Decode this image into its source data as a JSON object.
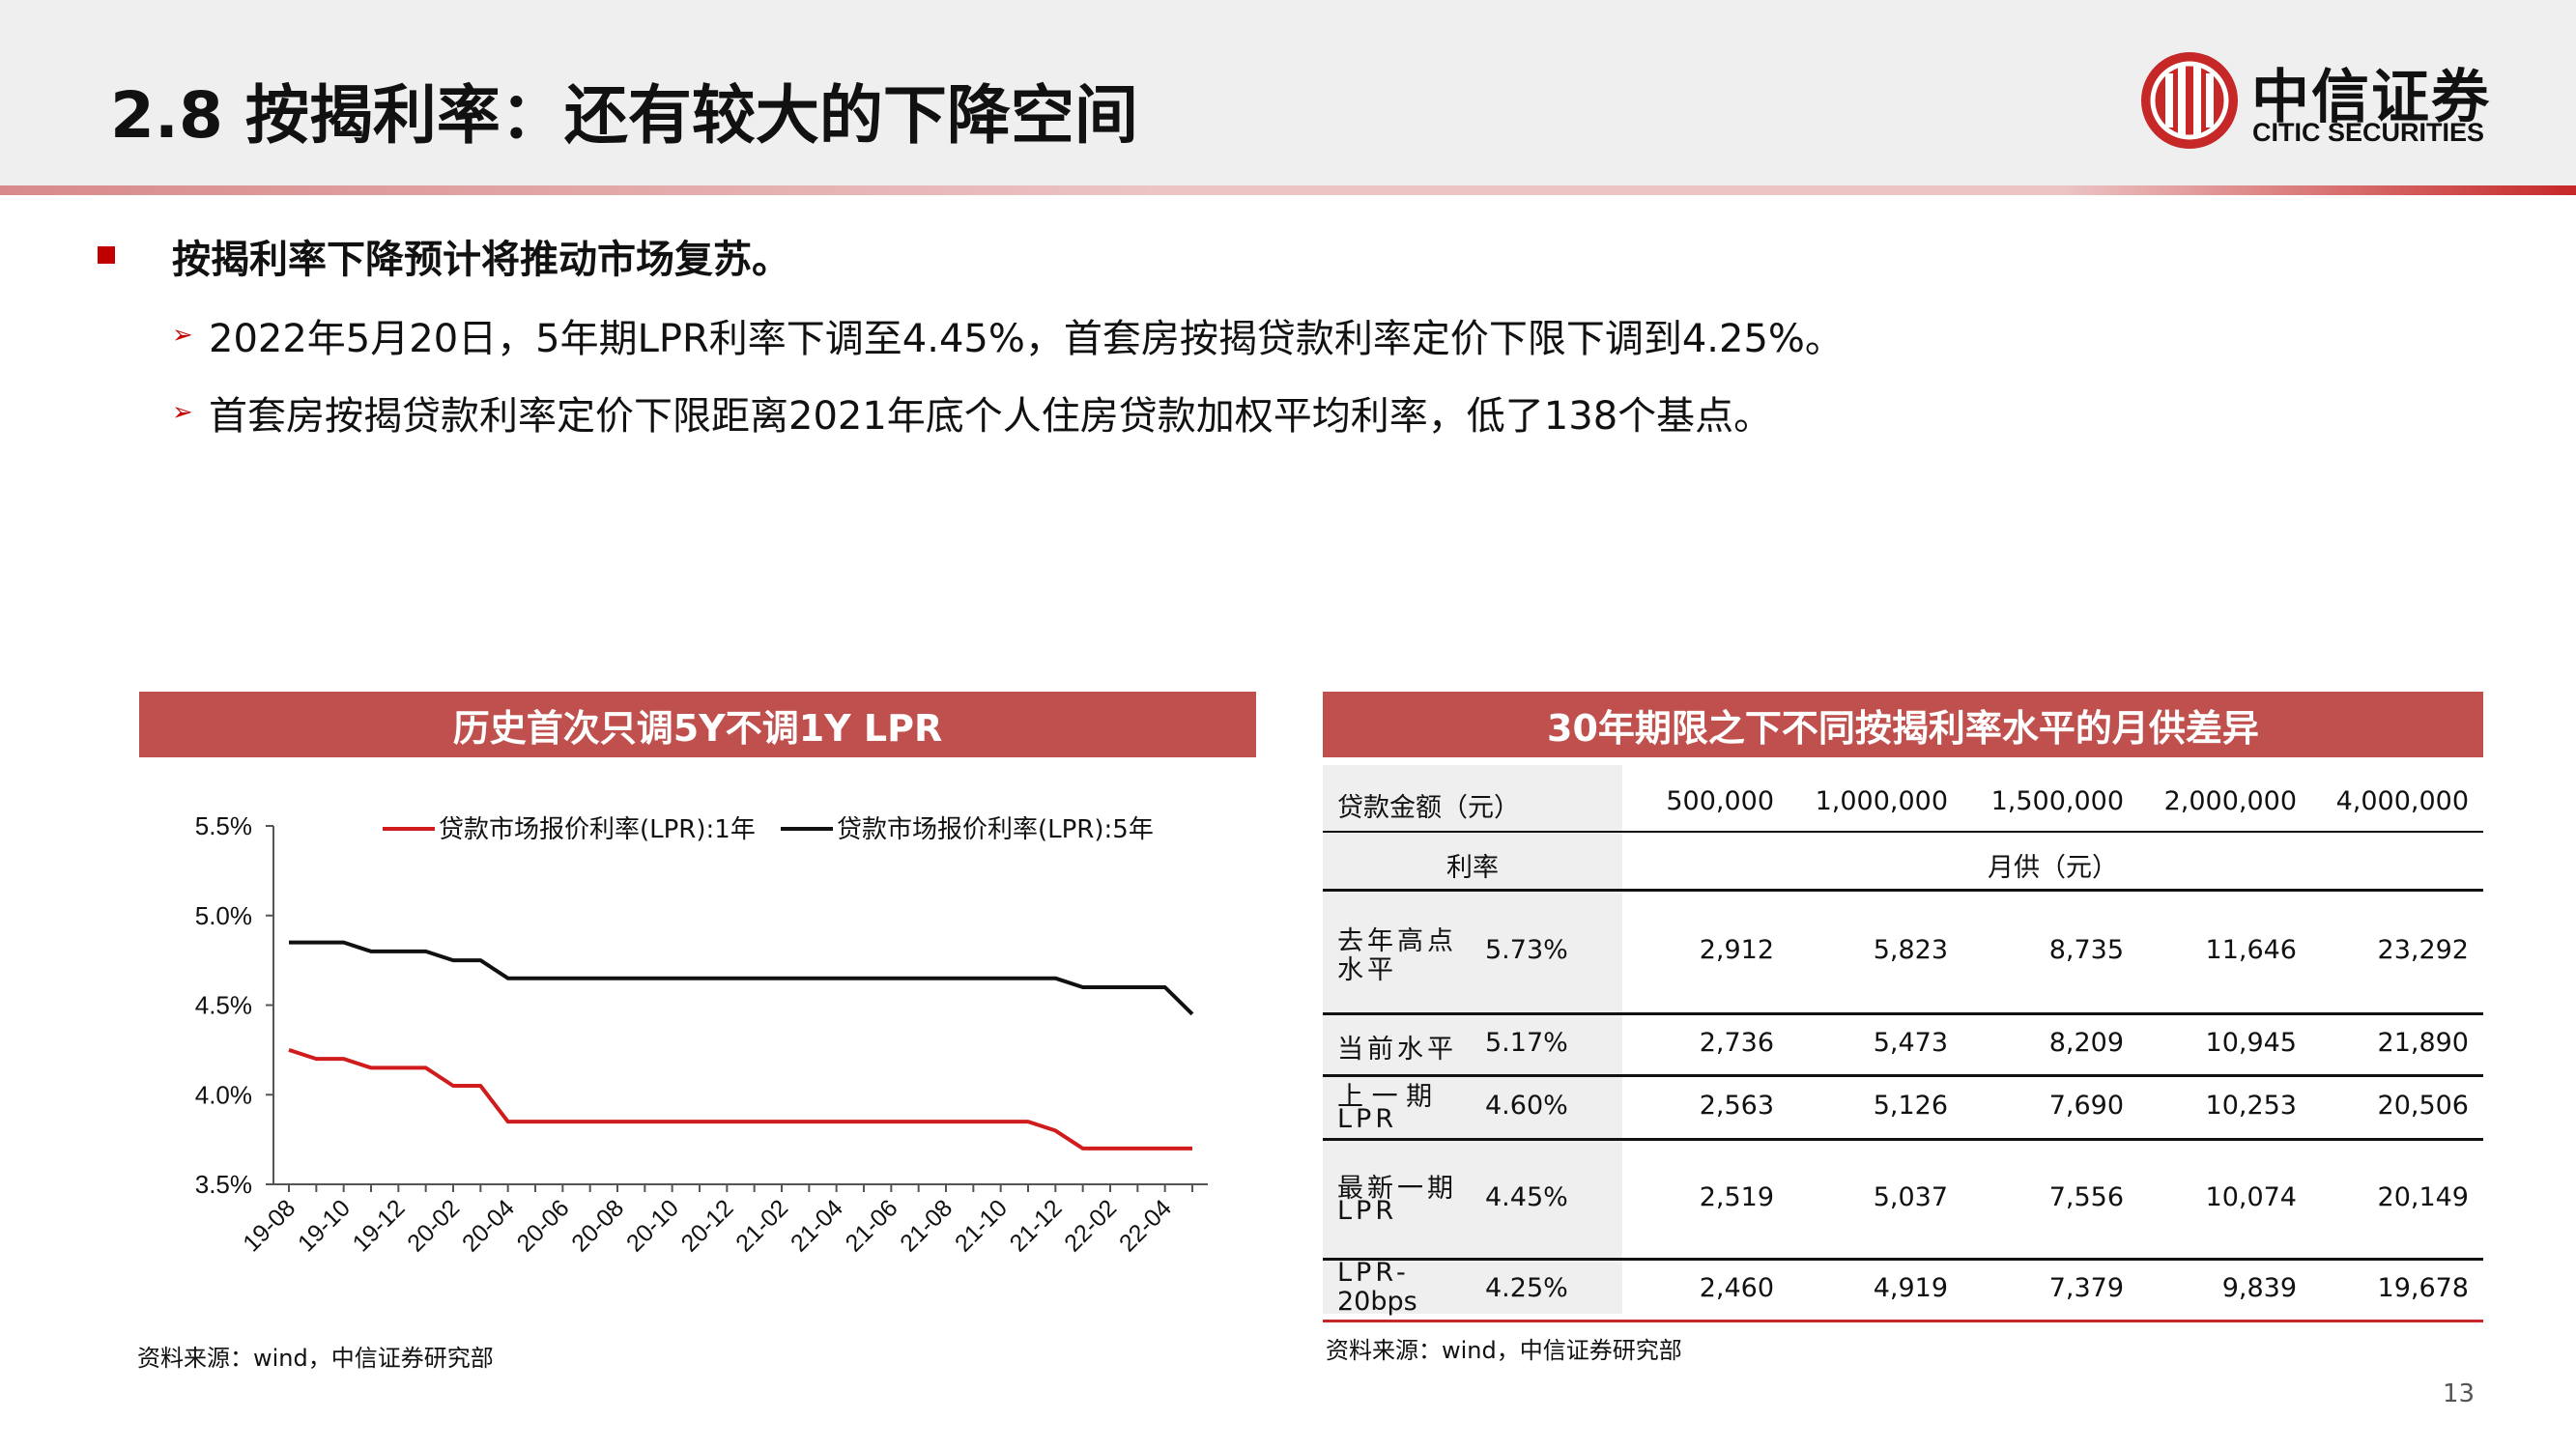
{
  "slide": {
    "title": "2.8 按揭利率：还有较大的下降空间",
    "page_number": "13"
  },
  "logo": {
    "cn": "中信证券",
    "en": "CITIC SECURITIES",
    "color": "#c62828"
  },
  "bullets": {
    "main": "按揭利率下降预计将推动市场复苏。",
    "arrow_glyph": "➢",
    "sub": [
      "2022年5月20日，5年期LPR利率下调至4.45%，首套房按揭贷款利率定价下限下调到4.25%。",
      "首套房按揭贷款利率定价下限距离2021年底个人住房贷款加权平均利率，低了138个基点。"
    ]
  },
  "chart_panel": {
    "header": "历史首次只调5Y不调1Y LPR",
    "source": "资料来源：wind，中信证券研究部"
  },
  "table_panel": {
    "header": "30年期限之下不同按揭利率水平的月供差异",
    "source": "资料来源：wind，中信证券研究部",
    "loan_label": "贷款金额（元）",
    "amounts": [
      "500,000",
      "1,000,000",
      "1,500,000",
      "2,000,000",
      "4,000,000"
    ],
    "rate_label": "利率",
    "payment_label": "月供（元）",
    "rows": [
      {
        "name_lines": [
          "去年高点",
          "水平"
        ],
        "rate": "5.73%",
        "values": [
          "2,912",
          "5,823",
          "8,735",
          "11,646",
          "23,292"
        ]
      },
      {
        "name_lines": [
          "当前水平"
        ],
        "rate": "5.17%",
        "values": [
          "2,736",
          "5,473",
          "8,209",
          "10,945",
          "21,890"
        ]
      },
      {
        "name_lines": [
          "上 一 期",
          "LPR"
        ],
        "rate": "4.60%",
        "values": [
          "2,563",
          "5,126",
          "7,690",
          "10,253",
          "20,506"
        ]
      },
      {
        "name_lines": [
          "最新一期",
          "LPR"
        ],
        "rate": "4.45%",
        "values": [
          "2,519",
          "5,037",
          "7,556",
          "10,074",
          "20,149"
        ]
      },
      {
        "name_lines": [
          "LPR-",
          "20bps"
        ],
        "rate": "4.25%",
        "values": [
          "2,460",
          "4,919",
          "7,379",
          "9,839",
          "19,678"
        ]
      }
    ]
  },
  "chart_data": {
    "type": "line",
    "title": "",
    "xlabel": "",
    "ylabel": "",
    "ylim": [
      3.5,
      5.5
    ],
    "y_ticks": [
      "3.5%",
      "4.0%",
      "4.5%",
      "5.0%",
      "5.5%"
    ],
    "y_tick_values": [
      3.5,
      4.0,
      4.5,
      5.0,
      5.5
    ],
    "grid": false,
    "legend_position": "top",
    "x_tick_labels": [
      "19-08",
      "19-10",
      "19-12",
      "20-02",
      "20-04",
      "20-06",
      "20-08",
      "20-10",
      "20-12",
      "21-02",
      "21-04",
      "21-06",
      "21-08",
      "21-10",
      "21-12",
      "22-02",
      "22-04"
    ],
    "x": [
      "19-08",
      "19-09",
      "19-10",
      "19-11",
      "19-12",
      "20-01",
      "20-02",
      "20-03",
      "20-04",
      "20-05",
      "20-06",
      "20-07",
      "20-08",
      "20-09",
      "20-10",
      "20-11",
      "20-12",
      "21-01",
      "21-02",
      "21-03",
      "21-04",
      "21-05",
      "21-06",
      "21-07",
      "21-08",
      "21-09",
      "21-10",
      "21-11",
      "21-12",
      "22-01",
      "22-02",
      "22-03",
      "22-04",
      "22-05"
    ],
    "series": [
      {
        "name": "贷款市场报价利率(LPR):1年",
        "color": "#d01c1c",
        "values": [
          4.25,
          4.2,
          4.2,
          4.15,
          4.15,
          4.15,
          4.05,
          4.05,
          3.85,
          3.85,
          3.85,
          3.85,
          3.85,
          3.85,
          3.85,
          3.85,
          3.85,
          3.85,
          3.85,
          3.85,
          3.85,
          3.85,
          3.85,
          3.85,
          3.85,
          3.85,
          3.85,
          3.85,
          3.8,
          3.7,
          3.7,
          3.7,
          3.7,
          3.7
        ]
      },
      {
        "name": "贷款市场报价利率(LPR):5年",
        "color": "#111111",
        "values": [
          4.85,
          4.85,
          4.85,
          4.8,
          4.8,
          4.8,
          4.75,
          4.75,
          4.65,
          4.65,
          4.65,
          4.65,
          4.65,
          4.65,
          4.65,
          4.65,
          4.65,
          4.65,
          4.65,
          4.65,
          4.65,
          4.65,
          4.65,
          4.65,
          4.65,
          4.65,
          4.65,
          4.65,
          4.65,
          4.6,
          4.6,
          4.6,
          4.6,
          4.45
        ]
      }
    ]
  }
}
